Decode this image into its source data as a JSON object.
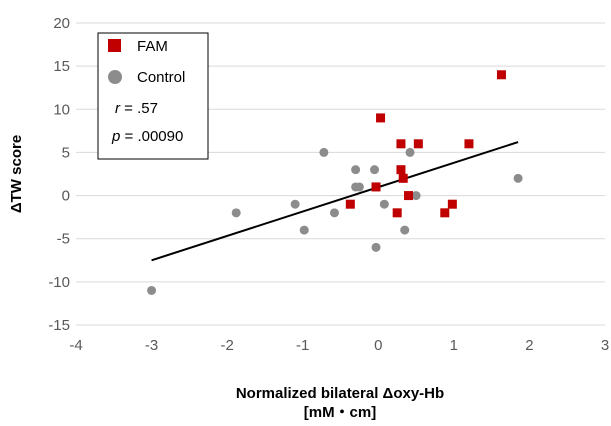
{
  "chart_data": {
    "type": "scatter",
    "title": "",
    "xlabel": "Normalized bilateral Δoxy-Hb",
    "xlabel_line2": "[mM・cm]",
    "ylabel": "ΔTW score",
    "xlim": [
      -4,
      3
    ],
    "ylim": [
      -15,
      20
    ],
    "xticks": [
      -4,
      -3,
      -2,
      -1,
      0,
      1,
      2,
      3
    ],
    "yticks": [
      -15,
      -10,
      -5,
      0,
      5,
      10,
      15,
      20
    ],
    "grid": "horizontal",
    "legend_position": "top-left",
    "series": [
      {
        "name": "FAM",
        "marker": "square",
        "color": "#c00000",
        "points": [
          {
            "x": 0.03,
            "y": 9
          },
          {
            "x": 0.3,
            "y": 6
          },
          {
            "x": 0.53,
            "y": 6
          },
          {
            "x": 1.2,
            "y": 6
          },
          {
            "x": 1.63,
            "y": 14
          },
          {
            "x": 0.3,
            "y": 3
          },
          {
            "x": 0.33,
            "y": 2
          },
          {
            "x": 0.4,
            "y": 0
          },
          {
            "x": -0.03,
            "y": 1
          },
          {
            "x": -0.37,
            "y": -1
          },
          {
            "x": 0.25,
            "y": -2
          },
          {
            "x": 0.88,
            "y": -2
          },
          {
            "x": 0.98,
            "y": -1
          }
        ]
      },
      {
        "name": "Control",
        "marker": "circle",
        "color": "#8c8c8c",
        "points": [
          {
            "x": -3.0,
            "y": -11
          },
          {
            "x": -1.88,
            "y": -2
          },
          {
            "x": -1.1,
            "y": -1
          },
          {
            "x": -0.98,
            "y": -4
          },
          {
            "x": -0.72,
            "y": 5
          },
          {
            "x": -0.58,
            "y": -2
          },
          {
            "x": -0.3,
            "y": 3
          },
          {
            "x": -0.3,
            "y": 1
          },
          {
            "x": -0.25,
            "y": 1
          },
          {
            "x": -0.05,
            "y": 3
          },
          {
            "x": -0.03,
            "y": -6
          },
          {
            "x": 0.08,
            "y": -1
          },
          {
            "x": 0.35,
            "y": -4
          },
          {
            "x": 0.42,
            "y": 5
          },
          {
            "x": 0.5,
            "y": 0
          },
          {
            "x": 1.85,
            "y": 2
          }
        ]
      }
    ],
    "trendline": {
      "x": [
        -3.0,
        1.85
      ],
      "y": [
        -7.5,
        6.2
      ]
    },
    "annotations": {
      "r_label": "r",
      "r_value": " = .57",
      "p_label": "p",
      "p_value": " = .00090"
    },
    "colors": {
      "grid": "#d9d9d9",
      "trendline": "#000000",
      "axis": "#bfbfbf"
    }
  }
}
